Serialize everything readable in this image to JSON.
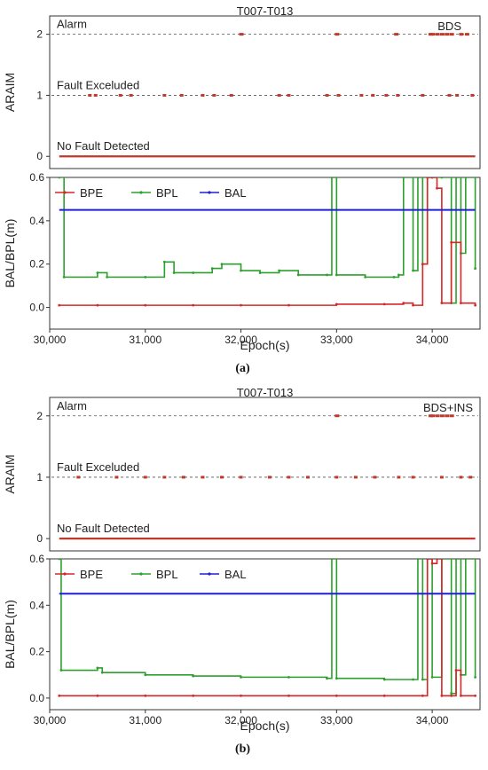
{
  "figure": {
    "panels": [
      {
        "caption": "(a)",
        "title": "T007-T013",
        "araim": {
          "ylabel": "ARAIM",
          "state_labels": [
            "Alarm",
            "Fault Exceluded",
            "No Fault Detected"
          ],
          "tag": "BDS"
        }
      },
      {
        "caption": "(b)",
        "title": "T007-T013",
        "araim": {
          "ylabel": "ARAIM",
          "state_labels": [
            "Alarm",
            "Fault Exceluded",
            "No Fault Detected"
          ],
          "tag": "BDS+INS"
        }
      }
    ],
    "colors": {
      "bpe": "#d62728",
      "bpl": "#2ca02c",
      "bal": "#1f1fd6",
      "alarm_line": "#555555"
    }
  },
  "chart_data": [
    {
      "type": "line",
      "panel": "a-araim",
      "title": "T007-T013",
      "ylabel": "ARAIM",
      "xlim": [
        30000,
        34500
      ],
      "ylim": [
        -0.2,
        2.3
      ],
      "yticks": [
        0,
        1,
        2
      ],
      "series": [
        {
          "values_desc": "state per epoch",
          "dominant": 0,
          "alarm_epochs": [
            32000,
            33000,
            33620,
            33980,
            34000,
            34050,
            34100,
            34150,
            34200,
            34300,
            34360
          ],
          "excluded_epochs": [
            30420,
            30480,
            30740,
            30850,
            31200,
            31380,
            31600,
            31720,
            31900,
            32400,
            32500,
            32900,
            33020,
            33260,
            33380,
            33520,
            33640,
            33900,
            34180,
            34260,
            34420
          ]
        }
      ]
    },
    {
      "type": "line",
      "panel": "a-protection",
      "xlabel": "Epoch(s)",
      "ylabel": "BAL/BPL(m)",
      "xlim": [
        30000,
        34500
      ],
      "ylim": [
        -0.1,
        0.6
      ],
      "xticks": [
        30000,
        31000,
        32000,
        33000,
        34000
      ],
      "xtick_labels": [
        "30,000",
        "31,000",
        "32,000",
        "33,000",
        "34,000"
      ],
      "yticks": [
        0.0,
        0.2,
        0.4,
        0.6
      ],
      "ytick_labels": [
        "0.0",
        "0.2",
        "0.4",
        "0.6"
      ],
      "series": [
        {
          "name": "BPE",
          "x": [
            30100,
            30500,
            31000,
            31500,
            32000,
            32500,
            33000,
            33500,
            33700,
            33800,
            33900,
            33950,
            34000,
            34050,
            34100,
            34200,
            34300,
            34450
          ],
          "y": [
            0.01,
            0.01,
            0.01,
            0.01,
            0.01,
            0.01,
            0.015,
            0.015,
            0.02,
            0.01,
            0.2,
            0.6,
            0.6,
            0.55,
            0.02,
            0.3,
            0.02,
            0.01
          ]
        },
        {
          "name": "BPL",
          "x": [
            30100,
            30150,
            30500,
            30600,
            31000,
            31200,
            31300,
            31500,
            31700,
            31800,
            32000,
            32200,
            32400,
            32600,
            32900,
            32950,
            33000,
            33300,
            33600,
            33650,
            33700,
            33800,
            33850,
            33900,
            33950,
            34000,
            34100,
            34200,
            34250,
            34300,
            34350,
            34450
          ],
          "y": [
            0.6,
            0.14,
            0.16,
            0.14,
            0.14,
            0.21,
            0.16,
            0.16,
            0.18,
            0.2,
            0.17,
            0.16,
            0.17,
            0.15,
            0.15,
            0.6,
            0.15,
            0.14,
            0.14,
            0.15,
            0.6,
            0.17,
            0.6,
            0.2,
            0.6,
            0.6,
            0.6,
            0.02,
            0.6,
            0.25,
            0.6,
            0.18
          ]
        },
        {
          "name": "BAL",
          "x": [
            30100,
            34450
          ],
          "y": [
            0.45,
            0.45
          ]
        }
      ]
    },
    {
      "type": "line",
      "panel": "b-araim",
      "title": "T007-T013",
      "ylabel": "ARAIM",
      "xlim": [
        30000,
        34500
      ],
      "ylim": [
        -0.2,
        2.3
      ],
      "yticks": [
        0,
        1,
        2
      ],
      "series": [
        {
          "values_desc": "state per epoch",
          "dominant": 0,
          "alarm_epochs": [
            33000,
            33980,
            34000,
            34050,
            34100,
            34150,
            34200
          ],
          "excluded_epochs": [
            30300,
            30700,
            31000,
            31200,
            31400,
            31600,
            31800,
            32000,
            32300,
            32500,
            32700,
            33000,
            33200,
            33400,
            33650,
            33800,
            34100,
            34300,
            34400
          ]
        }
      ]
    },
    {
      "type": "line",
      "panel": "b-protection",
      "xlabel": "Epoch(s)",
      "ylabel": "BAL/BPL(m)",
      "xlim": [
        30000,
        34500
      ],
      "ylim": [
        -0.05,
        0.6
      ],
      "xticks": [
        30000,
        31000,
        32000,
        33000,
        34000
      ],
      "xtick_labels": [
        "30,000",
        "31,000",
        "32,000",
        "33,000",
        "34,000"
      ],
      "yticks": [
        0.0,
        0.2,
        0.4,
        0.6
      ],
      "ytick_labels": [
        "0.0",
        "0.2",
        "0.4",
        "0.6"
      ],
      "series": [
        {
          "name": "BPE",
          "x": [
            30100,
            30500,
            31000,
            31500,
            32000,
            32500,
            33000,
            33500,
            33900,
            33950,
            34000,
            34050,
            34100,
            34200,
            34250,
            34300,
            34450
          ],
          "y": [
            0.01,
            0.01,
            0.01,
            0.01,
            0.01,
            0.01,
            0.01,
            0.01,
            0.01,
            0.6,
            0.58,
            0.6,
            0.01,
            0.01,
            0.12,
            0.01,
            0.01
          ]
        },
        {
          "name": "BPL",
          "x": [
            30100,
            30120,
            30500,
            30550,
            31000,
            31500,
            32000,
            32500,
            32900,
            32950,
            33000,
            33500,
            33800,
            33850,
            33900,
            33950,
            34000,
            34100,
            34200,
            34250,
            34300,
            34350,
            34450
          ],
          "y": [
            0.6,
            0.12,
            0.13,
            0.11,
            0.1,
            0.095,
            0.09,
            0.09,
            0.085,
            0.6,
            0.085,
            0.08,
            0.08,
            0.6,
            0.08,
            0.6,
            0.09,
            0.6,
            0.02,
            0.6,
            0.1,
            0.6,
            0.09
          ]
        },
        {
          "name": "BAL",
          "x": [
            30100,
            34450
          ],
          "y": [
            0.45,
            0.45
          ]
        }
      ]
    }
  ]
}
